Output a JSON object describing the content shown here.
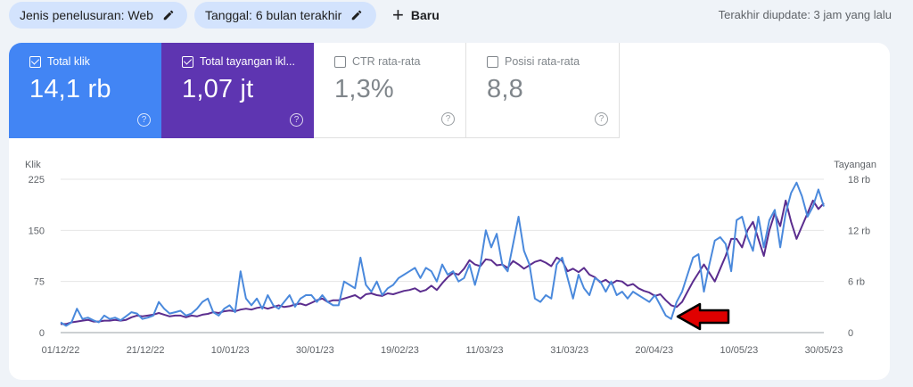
{
  "filters": {
    "search_type": "Jenis penelusuran: Web",
    "date": "Tanggal: 6 bulan terakhir",
    "new_label": "Baru"
  },
  "last_updated": "Terakhir diupdate: 3 jam yang lalu",
  "metrics": [
    {
      "label": "Total klik",
      "value": "14,1 rb",
      "checked": true
    },
    {
      "label": "Total tayangan ikl...",
      "value": "1,07 jt",
      "checked": true
    },
    {
      "label": "CTR rata-rata",
      "value": "1,3%",
      "checked": false
    },
    {
      "label": "Posisi rata-rata",
      "value": "8,8",
      "checked": false
    }
  ],
  "colors": {
    "clicks": "#4a89dc",
    "impressions": "#5b2d8e",
    "arrow": "#e00000"
  },
  "chart_data": {
    "type": "line",
    "y_left_label": "Klik",
    "y_right_label": "Tayangan",
    "y_left_ticks": [
      "0",
      "75",
      "150",
      "225"
    ],
    "y_right_ticks": [
      "0",
      "6 rb",
      "12 rb",
      "18 rb"
    ],
    "ylim_left": [
      0,
      225
    ],
    "ylim_right": [
      0,
      18000
    ],
    "x_tick_labels": [
      "01/12/22",
      "21/12/22",
      "10/01/23",
      "30/01/23",
      "19/02/23",
      "11/03/23",
      "31/03/23",
      "20/04/23",
      "10/05/23",
      "30/05/23"
    ],
    "x_start": "2022-12-01",
    "x_end": "2023-05-30",
    "grid": true,
    "series": [
      {
        "name": "Total klik",
        "axis": "left",
        "values": [
          15,
          10,
          15,
          35,
          20,
          22,
          18,
          15,
          25,
          20,
          22,
          18,
          24,
          30,
          28,
          20,
          22,
          25,
          45,
          35,
          28,
          30,
          32,
          25,
          28,
          35,
          45,
          50,
          30,
          25,
          35,
          40,
          30,
          90,
          50,
          40,
          50,
          35,
          55,
          40,
          35,
          45,
          55,
          38,
          50,
          55,
          55,
          45,
          55,
          45,
          40,
          40,
          75,
          70,
          65,
          110,
          70,
          60,
          75,
          55,
          65,
          70,
          80,
          85,
          90,
          95,
          80,
          95,
          90,
          75,
          100,
          85,
          90,
          75,
          80,
          100,
          70,
          100,
          150,
          125,
          145,
          100,
          90,
          130,
          170,
          120,
          100,
          50,
          45,
          55,
          50,
          100,
          110,
          80,
          50,
          85,
          65,
          55,
          80,
          75,
          60,
          75,
          55,
          60,
          50,
          60,
          55,
          50,
          45,
          55,
          40,
          25,
          20,
          45,
          60,
          85,
          110,
          115,
          60,
          100,
          135,
          140,
          130,
          90,
          165,
          170,
          140,
          120,
          170,
          125,
          165,
          180,
          125,
          175,
          205,
          220,
          200,
          170,
          185,
          210,
          185
        ]
      },
      {
        "name": "Total tayangan iklan",
        "axis": "right",
        "values": [
          1000,
          1000,
          1200,
          1300,
          1400,
          1500,
          1300,
          1300,
          1400,
          1400,
          1500,
          1400,
          1500,
          1800,
          2000,
          1900,
          2000,
          2100,
          2300,
          2100,
          1900,
          2000,
          2000,
          1800,
          2000,
          1900,
          2100,
          2200,
          2400,
          2300,
          2500,
          2600,
          2500,
          2700,
          2800,
          2700,
          2900,
          3000,
          2800,
          3000,
          3200,
          3000,
          3100,
          3300,
          3400,
          3200,
          3500,
          3800,
          4000,
          3600,
          3800,
          3800,
          4000,
          4200,
          4400,
          4000,
          4500,
          4600,
          4400,
          4300,
          4600,
          4500,
          4700,
          4900,
          5000,
          5200,
          4800,
          5000,
          5500,
          5000,
          5800,
          6500,
          7000,
          6800,
          7500,
          8500,
          8000,
          7800,
          8600,
          8500,
          7900,
          8000,
          7600,
          8400,
          8000,
          7500,
          7900,
          8300,
          8500,
          8200,
          7800,
          8800,
          8400,
          7200,
          7500,
          7100,
          7600,
          6800,
          6500,
          5900,
          6200,
          5700,
          6100,
          6000,
          5500,
          5700,
          5200,
          4900,
          4700,
          4300,
          4500,
          3800,
          3200,
          3000,
          3600,
          4800,
          6000,
          7000,
          8000,
          7000,
          6000,
          7500,
          9000,
          11000,
          11000,
          10000,
          12000,
          13000,
          11000,
          9000,
          12000,
          14000,
          12500,
          15500,
          13000,
          11000,
          12500,
          14000,
          15500,
          14500,
          15200
        ]
      }
    ]
  }
}
